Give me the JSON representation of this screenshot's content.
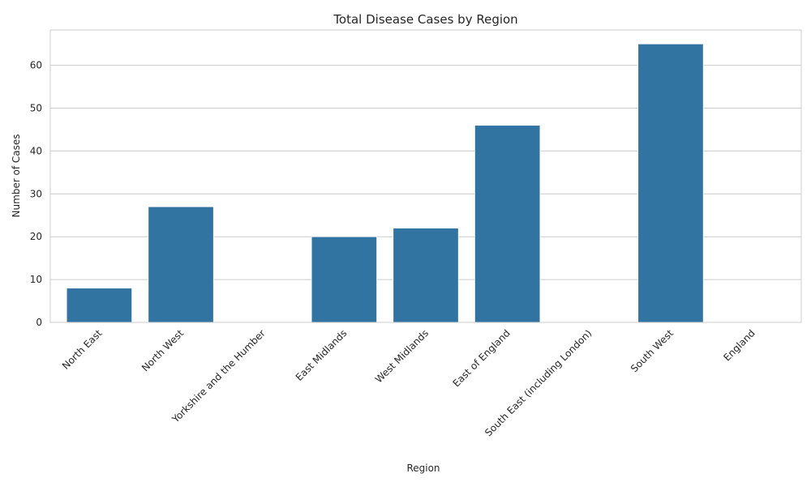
{
  "chart_data": {
    "type": "bar",
    "title": "Total Disease Cases by Region",
    "xlabel": "Region",
    "ylabel": "Number of Cases",
    "categories": [
      "North East",
      "North West",
      "Yorkshire and the Humber",
      "East Midlands",
      "West Midlands",
      "East of England",
      "South East (including London)",
      "South West",
      "England"
    ],
    "values": [
      8,
      27,
      0,
      20,
      22,
      46,
      0,
      65,
      0
    ],
    "ylim": [
      0,
      68.25
    ],
    "yticks": [
      0,
      10,
      20,
      30,
      40,
      50,
      60
    ],
    "grid": true,
    "bar_color": "#3274a1"
  }
}
